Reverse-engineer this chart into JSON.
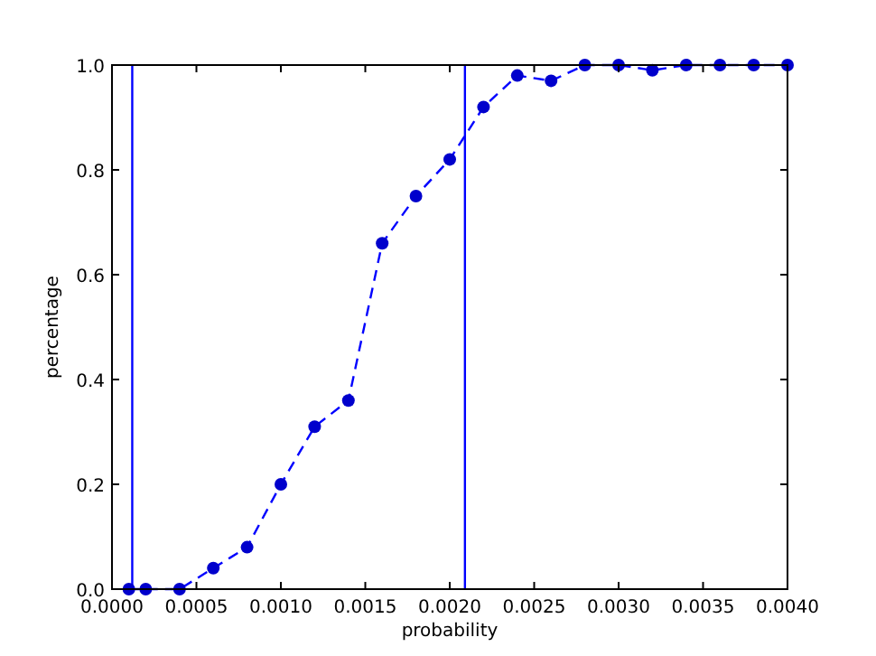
{
  "chart_data": {
    "type": "line",
    "xlabel": "probability",
    "ylabel": "percentage",
    "x": [
      0.0001,
      0.0002,
      0.0004,
      0.0006,
      0.0008,
      0.001,
      0.0012,
      0.0014,
      0.0016,
      0.0018,
      0.002,
      0.0022,
      0.0024,
      0.0026,
      0.0028,
      0.003,
      0.0032,
      0.0034,
      0.0036,
      0.0038,
      0.004
    ],
    "series": [
      {
        "color": "#0000ff",
        "values": [
          0,
          0,
          0,
          0.04,
          0.08,
          0.2,
          0.31,
          0.36,
          0.66,
          0.75,
          0.82,
          0.92,
          0.98,
          0.97,
          1,
          1,
          0.99,
          1,
          1,
          1,
          1
        ]
      }
    ],
    "marker": "circle",
    "line_style": "dashed",
    "grid": false,
    "xlim": [
      0,
      0.004
    ],
    "ylim": [
      0,
      1
    ],
    "xticks": [
      {
        "value": 0,
        "label": "0.0000"
      },
      {
        "value": 0.0005,
        "label": "0.0005"
      },
      {
        "value": 0.001,
        "label": "0.0010"
      },
      {
        "value": 0.0015,
        "label": "0.0015"
      },
      {
        "value": 0.002,
        "label": "0.0020"
      },
      {
        "value": 0.0025,
        "label": "0.0025"
      },
      {
        "value": 0.003,
        "label": "0.0030"
      },
      {
        "value": 0.0035,
        "label": "0.0035"
      },
      {
        "value": 0.004,
        "label": "0.0040"
      }
    ],
    "yticks": [
      {
        "value": 0,
        "label": "0.0"
      },
      {
        "value": 0.2,
        "label": "0.2"
      },
      {
        "value": 0.4,
        "label": "0.4"
      },
      {
        "value": 0.6,
        "label": "0.6"
      },
      {
        "value": 0.8,
        "label": "0.8"
      },
      {
        "value": 1,
        "label": "1.0"
      }
    ],
    "ref_lines": [
      {
        "axis": "x",
        "value": 0.00012,
        "color": "#0000ff"
      },
      {
        "axis": "x",
        "value": 0.00209,
        "color": "#0000ff"
      }
    ]
  }
}
